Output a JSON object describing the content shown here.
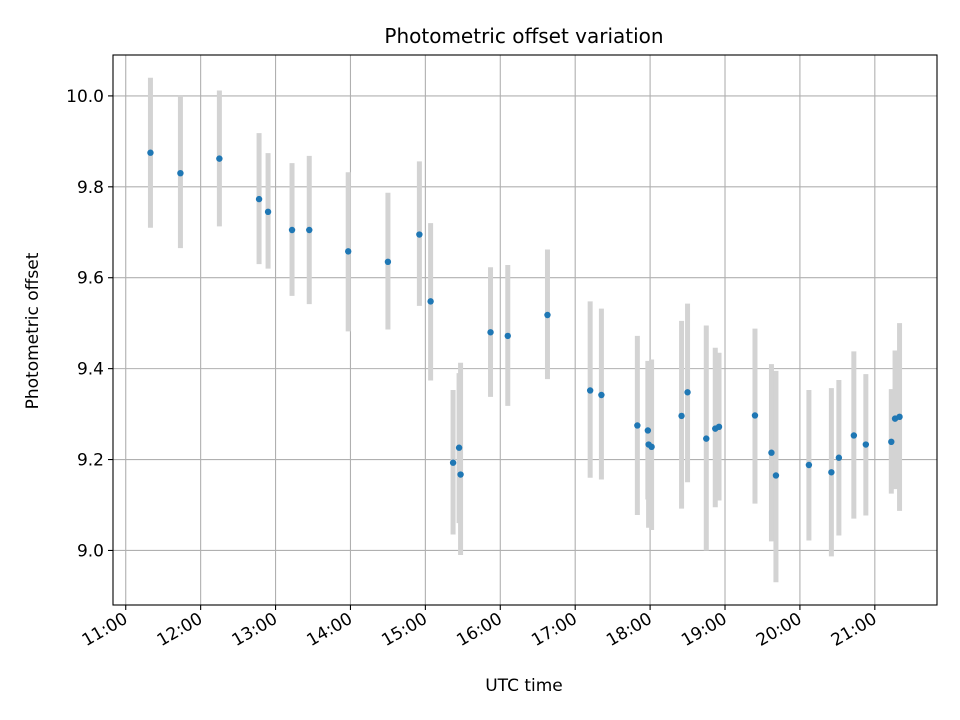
{
  "chart_data": {
    "type": "scatter",
    "title": "Photometric offset variation",
    "xlabel": "UTC time",
    "ylabel": "Photometric offset",
    "x_unit": "UTC hour of day",
    "xlim": [
      10.83,
      21.83
    ],
    "ylim": [
      8.88,
      10.09
    ],
    "x_ticks": [
      11,
      12,
      13,
      14,
      15,
      16,
      17,
      18,
      19,
      20,
      21
    ],
    "x_tick_labels": [
      "11:00",
      "12:00",
      "13:00",
      "14:00",
      "15:00",
      "16:00",
      "17:00",
      "18:00",
      "19:00",
      "20:00",
      "21:00"
    ],
    "y_ticks": [
      9.0,
      9.2,
      9.4,
      9.6,
      9.8,
      10.0
    ],
    "y_tick_labels": [
      "9.0",
      "9.2",
      "9.4",
      "9.6",
      "9.8",
      "10.0"
    ],
    "grid": true,
    "colors": {
      "marker": "#1f77b4",
      "errorbar": "#d3d3d3",
      "grid": "#b0b0b0"
    },
    "points": [
      {
        "x": 11.33,
        "y": 9.875,
        "ylo": 9.71,
        "yhi": 10.04
      },
      {
        "x": 11.73,
        "y": 9.83,
        "ylo": 9.665,
        "yhi": 10.0
      },
      {
        "x": 12.25,
        "y": 9.862,
        "ylo": 9.713,
        "yhi": 10.012
      },
      {
        "x": 12.78,
        "y": 9.773,
        "ylo": 9.63,
        "yhi": 9.918
      },
      {
        "x": 12.9,
        "y": 9.745,
        "ylo": 9.62,
        "yhi": 9.874
      },
      {
        "x": 13.22,
        "y": 9.705,
        "ylo": 9.56,
        "yhi": 9.852
      },
      {
        "x": 13.45,
        "y": 9.705,
        "ylo": 9.542,
        "yhi": 9.868
      },
      {
        "x": 13.97,
        "y": 9.658,
        "ylo": 9.482,
        "yhi": 9.832
      },
      {
        "x": 14.5,
        "y": 9.635,
        "ylo": 9.486,
        "yhi": 9.787
      },
      {
        "x": 14.92,
        "y": 9.695,
        "ylo": 9.538,
        "yhi": 9.856
      },
      {
        "x": 15.07,
        "y": 9.548,
        "ylo": 9.374,
        "yhi": 9.72
      },
      {
        "x": 15.37,
        "y": 9.193,
        "ylo": 9.035,
        "yhi": 9.353
      },
      {
        "x": 15.45,
        "y": 9.226,
        "ylo": 9.06,
        "yhi": 9.39
      },
      {
        "x": 15.47,
        "y": 9.167,
        "ylo": 8.99,
        "yhi": 9.413
      },
      {
        "x": 15.87,
        "y": 9.48,
        "ylo": 9.338,
        "yhi": 9.623
      },
      {
        "x": 16.1,
        "y": 9.472,
        "ylo": 9.318,
        "yhi": 9.628
      },
      {
        "x": 16.63,
        "y": 9.518,
        "ylo": 9.377,
        "yhi": 9.662
      },
      {
        "x": 17.2,
        "y": 9.352,
        "ylo": 9.16,
        "yhi": 9.548
      },
      {
        "x": 17.35,
        "y": 9.342,
        "ylo": 9.156,
        "yhi": 9.532
      },
      {
        "x": 17.83,
        "y": 9.275,
        "ylo": 9.078,
        "yhi": 9.472
      },
      {
        "x": 17.97,
        "y": 9.264,
        "ylo": 9.112,
        "yhi": 9.417
      },
      {
        "x": 17.98,
        "y": 9.233,
        "ylo": 9.05,
        "yhi": 9.405
      },
      {
        "x": 18.02,
        "y": 9.228,
        "ylo": 9.045,
        "yhi": 9.42
      },
      {
        "x": 18.42,
        "y": 9.296,
        "ylo": 9.092,
        "yhi": 9.505
      },
      {
        "x": 18.5,
        "y": 9.348,
        "ylo": 9.15,
        "yhi": 9.543
      },
      {
        "x": 18.75,
        "y": 9.246,
        "ylo": 9.0,
        "yhi": 9.495
      },
      {
        "x": 18.87,
        "y": 9.268,
        "ylo": 9.095,
        "yhi": 9.446
      },
      {
        "x": 18.92,
        "y": 9.272,
        "ylo": 9.11,
        "yhi": 9.435
      },
      {
        "x": 19.4,
        "y": 9.297,
        "ylo": 9.103,
        "yhi": 9.488
      },
      {
        "x": 19.62,
        "y": 9.215,
        "ylo": 9.02,
        "yhi": 9.41
      },
      {
        "x": 19.68,
        "y": 9.165,
        "ylo": 8.93,
        "yhi": 9.395
      },
      {
        "x": 20.12,
        "y": 9.188,
        "ylo": 9.022,
        "yhi": 9.353
      },
      {
        "x": 20.42,
        "y": 9.172,
        "ylo": 8.987,
        "yhi": 9.357
      },
      {
        "x": 20.52,
        "y": 9.204,
        "ylo": 9.033,
        "yhi": 9.375
      },
      {
        "x": 20.72,
        "y": 9.253,
        "ylo": 9.07,
        "yhi": 9.438
      },
      {
        "x": 20.88,
        "y": 9.233,
        "ylo": 9.077,
        "yhi": 9.388
      },
      {
        "x": 21.22,
        "y": 9.239,
        "ylo": 9.125,
        "yhi": 9.355
      },
      {
        "x": 21.27,
        "y": 9.29,
        "ylo": 9.135,
        "yhi": 9.44
      },
      {
        "x": 21.33,
        "y": 9.294,
        "ylo": 9.087,
        "yhi": 9.5
      }
    ]
  }
}
